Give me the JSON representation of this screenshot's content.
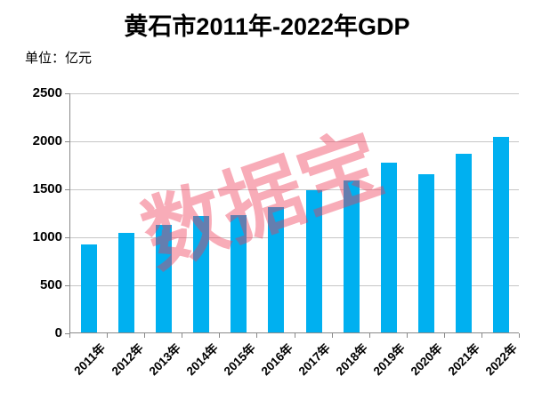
{
  "header": {
    "title": "黄石市2011年-2022年GDP",
    "unit_label": "单位：亿元"
  },
  "watermark": {
    "text": "数据宝",
    "color": "rgba(238,57,86,0.42)"
  },
  "chart_data": {
    "type": "bar",
    "title": "黄石市2011年-2022年GDP",
    "unit": "亿元",
    "categories": [
      "2011年",
      "2012年",
      "2013年",
      "2014年",
      "2015年",
      "2016年",
      "2017年",
      "2018年",
      "2019年",
      "2020年",
      "2021年",
      "2022年"
    ],
    "values": [
      920,
      1035,
      1120,
      1215,
      1220,
      1305,
      1480,
      1585,
      1765,
      1645,
      1865,
      2035
    ],
    "xlabel": "",
    "ylabel": "",
    "ylim": [
      0,
      2500
    ],
    "yticks": [
      0,
      500,
      1000,
      1500,
      2000,
      2500
    ],
    "grid": true,
    "legend": false,
    "bar_color": "#00B0F0",
    "gridline_color": "#C6C6C6",
    "axis_color": "#898989",
    "label_color": "#000000"
  }
}
